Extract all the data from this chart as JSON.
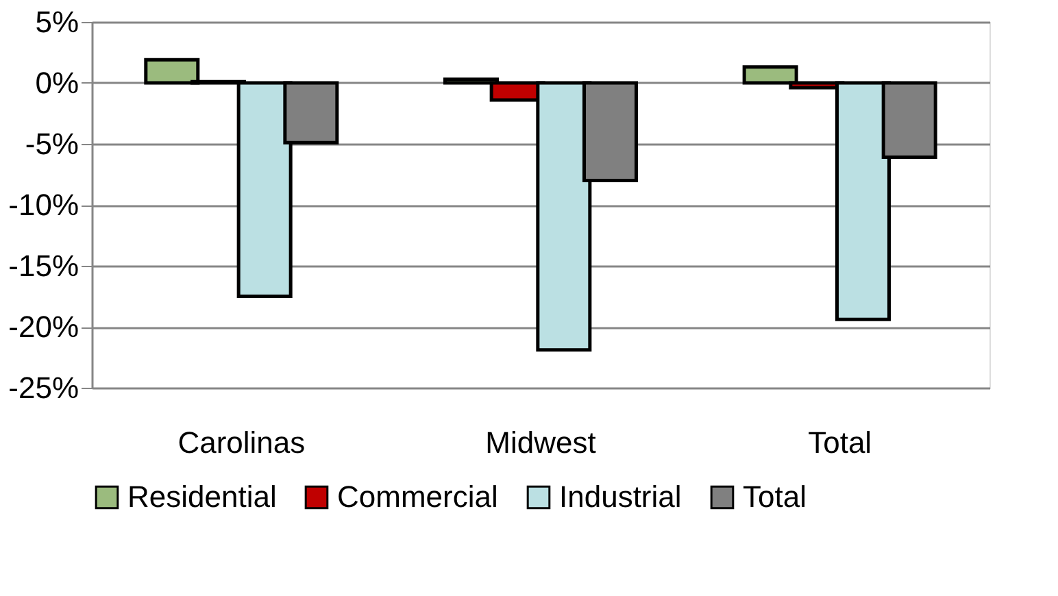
{
  "chart_data": {
    "type": "bar",
    "categories": [
      "Carolinas",
      "Midwest",
      "Total"
    ],
    "series": [
      {
        "name": "Residential",
        "color": "#9bbb7e",
        "values": [
          1.9,
          0.3,
          1.3
        ]
      },
      {
        "name": "Commercial",
        "color": "#c00000",
        "values": [
          0.1,
          -1.4,
          -0.4
        ]
      },
      {
        "name": "Industrial",
        "color": "#bbe0e3",
        "values": [
          -17.5,
          -21.9,
          -19.4
        ]
      },
      {
        "name": "Total",
        "color": "#808080",
        "values": [
          -4.9,
          -8.0,
          -6.1
        ]
      }
    ],
    "ylim": [
      -25,
      5
    ],
    "yticks": [
      {
        "value": 5,
        "label": "5%"
      },
      {
        "value": 0,
        "label": "0%"
      },
      {
        "value": -5,
        "label": "-5%"
      },
      {
        "value": -10,
        "label": "-10%"
      },
      {
        "value": -15,
        "label": "-15%"
      },
      {
        "value": -20,
        "label": "-20%"
      },
      {
        "value": -25,
        "label": "-25%"
      }
    ],
    "grid": "y",
    "legend": "bottom"
  }
}
